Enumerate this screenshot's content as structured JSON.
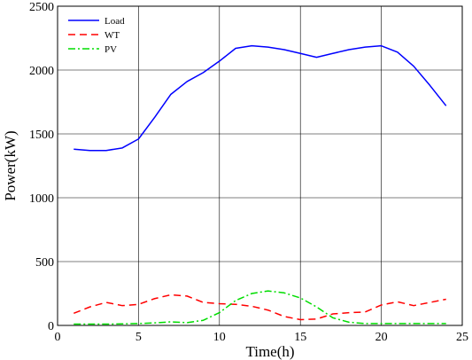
{
  "chart_data": {
    "type": "line",
    "xlabel": "Time(h)",
    "ylabel": "Power(kW)",
    "xlim": [
      0,
      25
    ],
    "ylim": [
      0,
      2500
    ],
    "xticks": [
      0,
      5,
      10,
      15,
      20,
      25
    ],
    "yticks": [
      0,
      500,
      1000,
      1500,
      2000,
      2500
    ],
    "xtick_labels": [
      "0",
      "5",
      "10",
      "15",
      "20",
      "25"
    ],
    "ytick_labels": [
      "0",
      "500",
      "1000",
      "1500",
      "2000",
      "2500"
    ],
    "grid": true,
    "legend_position": "top-left",
    "x": [
      1,
      2,
      3,
      4,
      5,
      6,
      7,
      8,
      9,
      10,
      11,
      12,
      13,
      14,
      15,
      16,
      17,
      18,
      19,
      20,
      21,
      22,
      23,
      24
    ],
    "series": [
      {
        "name": "Load",
        "color": "#0000ff",
        "dash": "solid",
        "values": [
          1380,
          1370,
          1370,
          1390,
          1460,
          1630,
          1810,
          1910,
          1980,
          2070,
          2170,
          2190,
          2180,
          2160,
          2130,
          2100,
          2130,
          2160,
          2180,
          2190,
          2140,
          2030,
          1880,
          1720
        ]
      },
      {
        "name": "WT",
        "color": "#ff0000",
        "dash": "dashed",
        "values": [
          95,
          145,
          180,
          155,
          165,
          210,
          240,
          230,
          180,
          170,
          165,
          150,
          120,
          70,
          45,
          50,
          90,
          100,
          105,
          160,
          185,
          155,
          180,
          205
        ]
      },
      {
        "name": "PV",
        "color": "#00dd00",
        "dash": "dashdot",
        "values": [
          10,
          10,
          10,
          12,
          15,
          20,
          28,
          22,
          40,
          100,
          195,
          250,
          270,
          255,
          215,
          145,
          60,
          25,
          15,
          15,
          15,
          15,
          15,
          15
        ]
      }
    ]
  }
}
